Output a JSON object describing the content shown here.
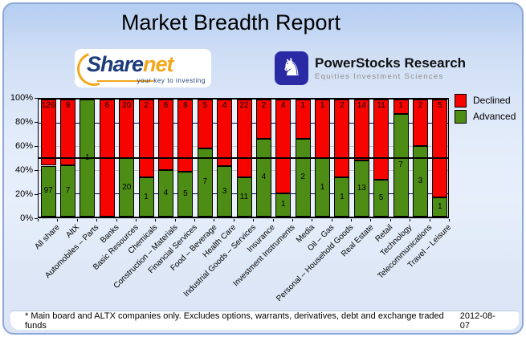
{
  "title": "Market Breadth Report",
  "logos": {
    "sharenet": {
      "text_share": "Share",
      "text_net": "net",
      "tagline": "your key to investing",
      "brand_navy": "#1c3c7a",
      "brand_orange": "#f3a71d"
    },
    "powerstocks": {
      "knight_glyph": "♞",
      "name": "PowerStocks Research",
      "subtitle": "Equities Investment Sciences",
      "badge_blue": "#2a2aa5"
    }
  },
  "chart_data": {
    "type": "bar",
    "stacked": true,
    "value_display": "percent_stacked_with_count_labels",
    "categories": [
      "All share",
      "AltX",
      "Automobiles – Parts",
      "Banks",
      "Basic Resources",
      "Chemicals",
      "Construction – Materials",
      "Financial Services",
      "Food – Beverage",
      "Health Care",
      "Industrial Goods – Services",
      "Insurance",
      "Investment Instruments",
      "Media",
      "Oil – Gas",
      "Personal – Household Goods",
      "Real Estate",
      "Retail",
      "Technology",
      "Telecommunications",
      "Travel – Leisure"
    ],
    "series": [
      {
        "name": "Declined",
        "color": "#f60400",
        "values": [
          126,
          9,
          0,
          6,
          20,
          2,
          6,
          8,
          5,
          4,
          22,
          2,
          4,
          1,
          1,
          2,
          14,
          11,
          1,
          2,
          5
        ]
      },
      {
        "name": "Advanced",
        "color": "#4d8c15",
        "values": [
          97,
          7,
          1,
          0,
          20,
          1,
          4,
          5,
          7,
          3,
          11,
          4,
          1,
          2,
          1,
          1,
          13,
          5,
          7,
          3,
          1
        ]
      }
    ],
    "ylim": [
      0,
      100
    ],
    "y_ticks": [
      "0%",
      "20%",
      "40%",
      "60%",
      "80%",
      "100%"
    ],
    "gridlines": [
      {
        "pct": 20,
        "color": "#000066"
      },
      {
        "pct": 40,
        "color": "#c3c3c3"
      },
      {
        "pct": 60,
        "color": "#c3c3c3"
      },
      {
        "pct": 80,
        "color": "#000066"
      }
    ],
    "midline_pct": 50,
    "legend_position": "right",
    "grid": true
  },
  "footer": {
    "note": "* Main board and ALTX companies only. Excludes options, warrants, derivatives, debt and exchange traded funds",
    "date": "2012-08-07"
  }
}
